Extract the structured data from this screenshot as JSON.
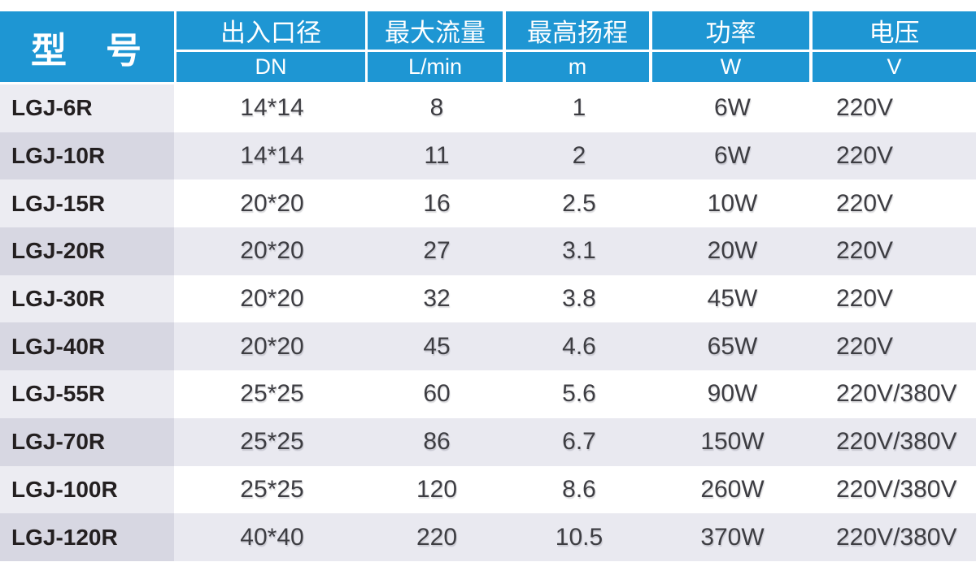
{
  "colors": {
    "header_bg": "#1e96d3",
    "row_alt_bg": "#e9e9f0",
    "model_col_light": "#ececf2",
    "model_col_dark": "#d7d7e2",
    "model_text": "#231f20",
    "value_text": "#3d3d42"
  },
  "table": {
    "header": {
      "model_label": "型　号",
      "columns": [
        {
          "label": "出入口径",
          "unit": "DN"
        },
        {
          "label": "最大流量",
          "unit": "L/min"
        },
        {
          "label": "最高扬程",
          "unit": "m"
        },
        {
          "label": "功率",
          "unit": "W"
        },
        {
          "label": "电压",
          "unit": "V"
        }
      ]
    },
    "rows": [
      {
        "model": "LGJ-6R",
        "size": "14*14",
        "flow": "8",
        "head": "1",
        "power": "6W",
        "voltage": "220V"
      },
      {
        "model": "LGJ-10R",
        "size": "14*14",
        "flow": "11",
        "head": "2",
        "power": "6W",
        "voltage": "220V"
      },
      {
        "model": "LGJ-15R",
        "size": "20*20",
        "flow": "16",
        "head": "2.5",
        "power": "10W",
        "voltage": "220V"
      },
      {
        "model": "LGJ-20R",
        "size": "20*20",
        "flow": "27",
        "head": "3.1",
        "power": "20W",
        "voltage": "220V"
      },
      {
        "model": "LGJ-30R",
        "size": "20*20",
        "flow": "32",
        "head": "3.8",
        "power": "45W",
        "voltage": "220V"
      },
      {
        "model": "LGJ-40R",
        "size": "20*20",
        "flow": "45",
        "head": "4.6",
        "power": "65W",
        "voltage": "220V"
      },
      {
        "model": "LGJ-55R",
        "size": "25*25",
        "flow": "60",
        "head": "5.6",
        "power": "90W",
        "voltage": "220V/380V"
      },
      {
        "model": "LGJ-70R",
        "size": "25*25",
        "flow": "86",
        "head": "6.7",
        "power": "150W",
        "voltage": "220V/380V"
      },
      {
        "model": "LGJ-100R",
        "size": "25*25",
        "flow": "120",
        "head": "8.6",
        "power": "260W",
        "voltage": "220V/380V"
      },
      {
        "model": "LGJ-120R",
        "size": "40*40",
        "flow": "220",
        "head": "10.5",
        "power": "370W",
        "voltage": "220V/380V"
      }
    ]
  }
}
